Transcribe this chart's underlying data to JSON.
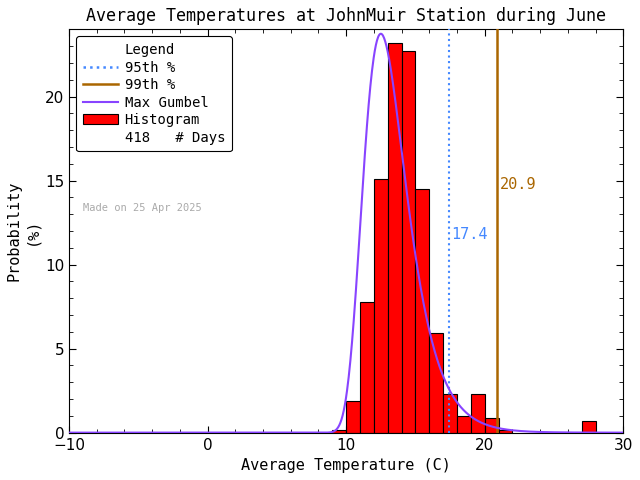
{
  "title": "Average Temperatures at JohnMuir Station during June",
  "xlabel": "Average Temperature (C)",
  "ylabel": "Probability\n(%)",
  "xlim": [
    -10,
    30
  ],
  "ylim": [
    0,
    24
  ],
  "xticks": [
    -10,
    0,
    10,
    20,
    30
  ],
  "yticks": [
    0,
    5,
    10,
    15,
    20
  ],
  "bar_left_edges": [
    9,
    10,
    11,
    12,
    13,
    14,
    15,
    16,
    17,
    18,
    19,
    20,
    21,
    27
  ],
  "bar_heights": [
    0.15,
    1.9,
    7.8,
    15.1,
    23.2,
    22.7,
    14.5,
    5.9,
    2.3,
    1.0,
    2.3,
    0.9,
    0.15,
    0.7
  ],
  "bar_width": 1,
  "bar_color": "#ff0000",
  "bar_edgecolor": "#000000",
  "gumbel_color": "#8844ff",
  "gumbel_mu": 12.5,
  "gumbel_beta": 1.55,
  "p95_value": 17.4,
  "p95_color": "#4488ff",
  "p99_value": 20.9,
  "p99_color": "#aa6600",
  "p95_label": "17.4",
  "p99_label": "20.9",
  "n_days": 418,
  "made_on": "Made on 25 Apr 2025",
  "background_color": "#ffffff",
  "title_fontsize": 12,
  "axis_fontsize": 11,
  "tick_fontsize": 11,
  "legend_fontsize": 10
}
